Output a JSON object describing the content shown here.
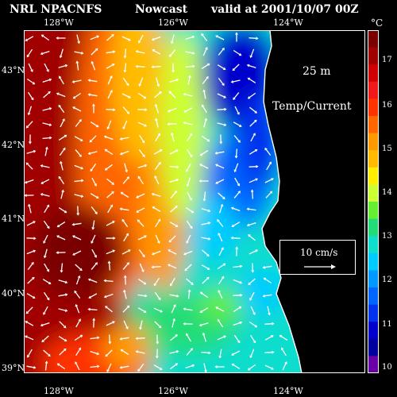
{
  "header": {
    "source": "NRL NPACNFS",
    "kind": "Nowcast",
    "valid": "valid at 2001/10/07 00Z"
  },
  "lon_ticks": [
    "128°W",
    "126°W",
    "124°W"
  ],
  "lat_ticks": [
    "43°N",
    "42°N",
    "41°N",
    "40°N",
    "39°N"
  ],
  "colorbar": {
    "unit": "°C",
    "ticks": [
      "17",
      "16",
      "15",
      "14",
      "13",
      "12",
      "11",
      "10"
    ],
    "colors": [
      "#7a0000",
      "#a00000",
      "#d00000",
      "#f01818",
      "#ff3300",
      "#ff6600",
      "#ff9900",
      "#ffbb00",
      "#ffee00",
      "#ccff33",
      "#66ee33",
      "#22dd77",
      "#11ddcc",
      "#00ccff",
      "#0099ff",
      "#0066ff",
      "#0033ee",
      "#0000cc",
      "#0000a0",
      "#6a00a8"
    ]
  },
  "annotations": {
    "depth": "25 m",
    "field": "Temp/Current"
  },
  "vector_legend": {
    "label": "10 cm/s"
  }
}
